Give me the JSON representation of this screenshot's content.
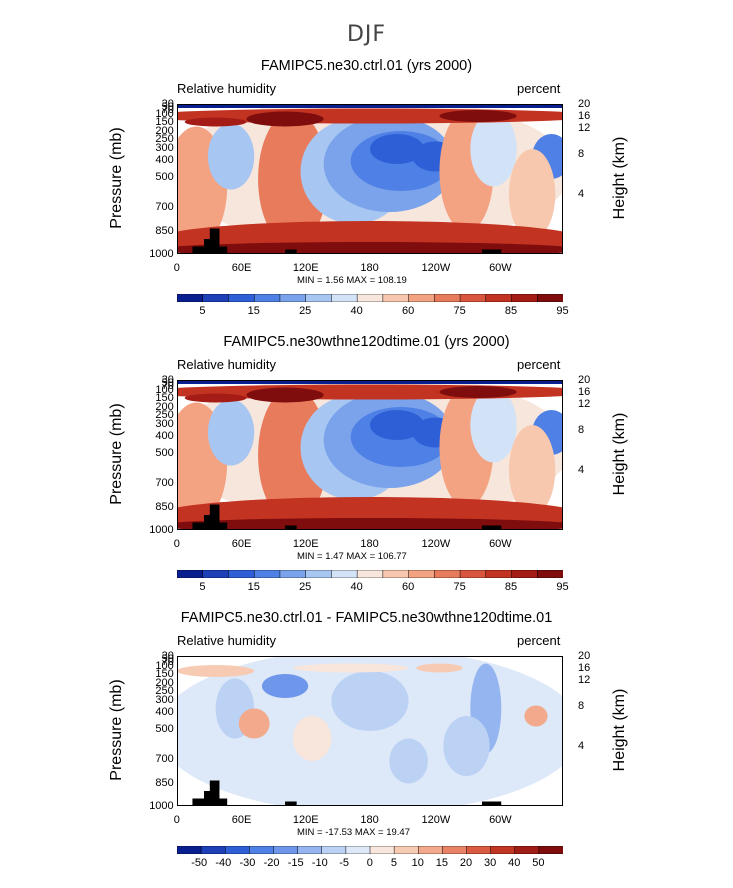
{
  "main_title": "DJF",
  "chart_data": [
    {
      "type": "heatmap",
      "title": "FAMIPC5.ne30.ctrl.01 (yrs 2000)",
      "left_label": "Relative humidity",
      "right_label": "percent",
      "ylabel": "Pressure (mb)",
      "ylabel_right": "Height (km)",
      "x_ticks": [
        "0",
        "60E",
        "120E",
        "180",
        "120W",
        "60W"
      ],
      "y_ticks": [
        "30",
        "50",
        "70",
        "100",
        "150",
        "200",
        "250",
        "300",
        "400",
        "500",
        "700",
        "850",
        "1000"
      ],
      "y_right_ticks": [
        "20",
        "16",
        "12",
        "8",
        "4"
      ],
      "min": "1.56",
      "max": "108.19",
      "stats_text": "MIN =    1.56  MAX = 108.19",
      "colorbar_labels": [
        "5",
        "15",
        "25",
        "40",
        "60",
        "75",
        "85",
        "95"
      ],
      "colorbar_colors": [
        "#0a1f8f",
        "#1d3fb8",
        "#2f5fd6",
        "#4f80e6",
        "#7aa3ec",
        "#a8c6f2",
        "#d3e3f7",
        "#f7e6dc",
        "#f7c8ae",
        "#f3a282",
        "#e87b5c",
        "#d9553d",
        "#c23322",
        "#a51c17",
        "#7f0d0d"
      ]
    },
    {
      "type": "heatmap",
      "title": "FAMIPC5.ne30wthne120dtime.01 (yrs 2000)",
      "left_label": "Relative humidity",
      "right_label": "percent",
      "ylabel": "Pressure (mb)",
      "ylabel_right": "Height (km)",
      "x_ticks": [
        "0",
        "60E",
        "120E",
        "180",
        "120W",
        "60W"
      ],
      "y_ticks": [
        "30",
        "50",
        "70",
        "100",
        "150",
        "200",
        "250",
        "300",
        "400",
        "500",
        "700",
        "850",
        "1000"
      ],
      "y_right_ticks": [
        "20",
        "16",
        "12",
        "8",
        "4"
      ],
      "min": "1.47",
      "max": "106.77",
      "stats_text": "MIN =    1.47  MAX = 106.77",
      "colorbar_labels": [
        "5",
        "15",
        "25",
        "40",
        "60",
        "75",
        "85",
        "95"
      ],
      "colorbar_colors": [
        "#0a1f8f",
        "#1d3fb8",
        "#2f5fd6",
        "#4f80e6",
        "#7aa3ec",
        "#a8c6f2",
        "#d3e3f7",
        "#f7e6dc",
        "#f7c8ae",
        "#f3a282",
        "#e87b5c",
        "#d9553d",
        "#c23322",
        "#a51c17",
        "#7f0d0d"
      ]
    },
    {
      "type": "heatmap",
      "title": "FAMIPC5.ne30.ctrl.01 - FAMIPC5.ne30wthne120dtime.01",
      "left_label": "Relative humidity",
      "right_label": "percent",
      "ylabel": "Pressure (mb)",
      "ylabel_right": "Height (km)",
      "x_ticks": [
        "0",
        "60E",
        "120E",
        "180",
        "120W",
        "60W"
      ],
      "y_ticks": [
        "30",
        "50",
        "70",
        "100",
        "150",
        "200",
        "250",
        "300",
        "400",
        "500",
        "700",
        "850",
        "1000"
      ],
      "y_right_ticks": [
        "20",
        "16",
        "12",
        "8",
        "4"
      ],
      "min": "-17.53",
      "max": "19.47",
      "stats_text": "MIN = -17.53  MAX =  19.47",
      "colorbar_labels": [
        "-50",
        "-40",
        "-30",
        "-20",
        "-15",
        "-10",
        "-5",
        "0",
        "5",
        "10",
        "15",
        "20",
        "30",
        "40",
        "50"
      ],
      "colorbar_colors": [
        "#0a1f8f",
        "#1d3fb8",
        "#2f5fd6",
        "#4f80e6",
        "#6e96ea",
        "#94b5f0",
        "#bcd2f4",
        "#dde8f8",
        "#f8e5db",
        "#f7cbb3",
        "#f3aa8c",
        "#e98367",
        "#d95b41",
        "#c13523",
        "#a01c16",
        "#7f0d0d"
      ]
    }
  ]
}
